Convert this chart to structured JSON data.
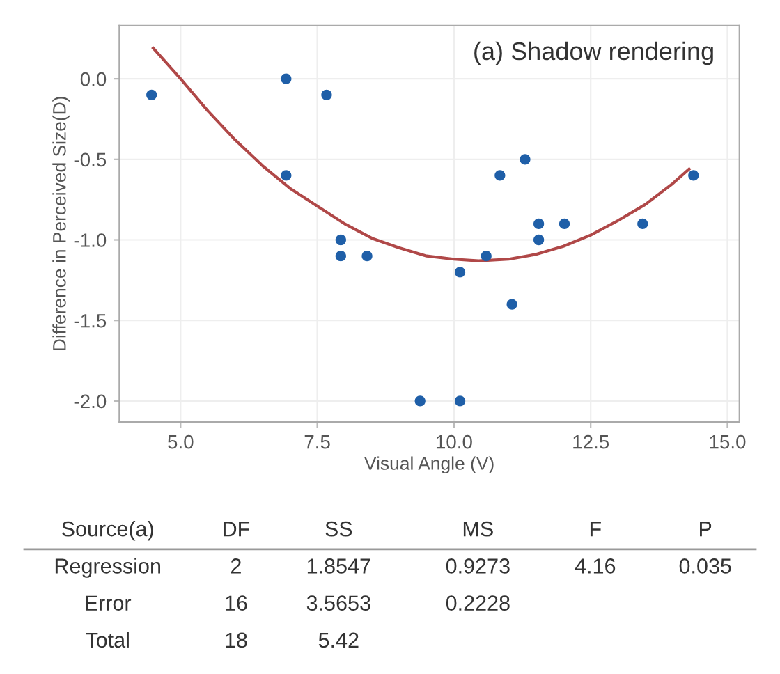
{
  "chart_data": [
    {
      "type": "scatter",
      "title": "(a) Shadow rendering",
      "xlabel": "Visual Angle (V)",
      "ylabel": "Difference in Perceived Size(D)",
      "xlim": [
        3.88,
        15.22
      ],
      "ylim": [
        -2.13,
        0.33
      ],
      "xticks": [
        {
          "value": 5,
          "label": "5.0"
        },
        {
          "value": 7.5,
          "label": "7.5"
        },
        {
          "value": 10,
          "label": "10.0"
        },
        {
          "value": 12.5,
          "label": "12.5"
        },
        {
          "value": 15,
          "label": "15.0"
        }
      ],
      "yticks": [
        {
          "value": 0,
          "label": "0.0"
        },
        {
          "value": -0.5,
          "label": "-0.5"
        },
        {
          "value": -1,
          "label": "-1.0"
        },
        {
          "value": -1.5,
          "label": "-1.5"
        },
        {
          "value": -2,
          "label": "-2.0"
        }
      ],
      "grid": true,
      "series": [
        {
          "type": "scatter",
          "marker": "circle",
          "color": "#1f5fa8",
          "x": [
            4.47,
            6.93,
            6.93,
            7.67,
            7.93,
            7.93,
            8.41,
            9.38,
            10.11,
            10.11,
            10.59,
            10.84,
            11.06,
            11.3,
            11.55,
            11.55,
            12.02,
            13.45,
            14.38
          ],
          "values": [
            -0.1,
            0.0,
            -0.6,
            -0.1,
            -1.0,
            -1.1,
            -1.1,
            -2.0,
            -2.0,
            -1.2,
            -1.1,
            -0.6,
            -1.4,
            -0.5,
            -0.9,
            -1.0,
            -0.9,
            -0.9,
            -0.6
          ]
        },
        {
          "type": "line",
          "color": "#b04848",
          "x": [
            4.5,
            5,
            5.5,
            6,
            6.5,
            7,
            7.5,
            8,
            8.5,
            9,
            9.5,
            10,
            10.45,
            11,
            11.5,
            12,
            12.5,
            13,
            13.5,
            14,
            14.3
          ],
          "values": [
            0.19,
            0.0,
            -0.2,
            -0.38,
            -0.54,
            -0.68,
            -0.79,
            -0.9,
            -0.99,
            -1.05,
            -1.1,
            -1.12,
            -1.13,
            -1.12,
            -1.09,
            -1.04,
            -0.97,
            -0.88,
            -0.78,
            -0.65,
            -0.56
          ]
        }
      ]
    },
    {
      "type": "other",
      "annotations": [
        "Source(a)",
        "DF",
        "SS",
        "MS",
        "F",
        "P",
        "Regression",
        "2",
        "1.8547",
        "0.9273",
        "4.16",
        "0.035",
        "Error",
        "16",
        "3.5653",
        "0.2228",
        "Total",
        "18",
        "5.42"
      ]
    }
  ]
}
